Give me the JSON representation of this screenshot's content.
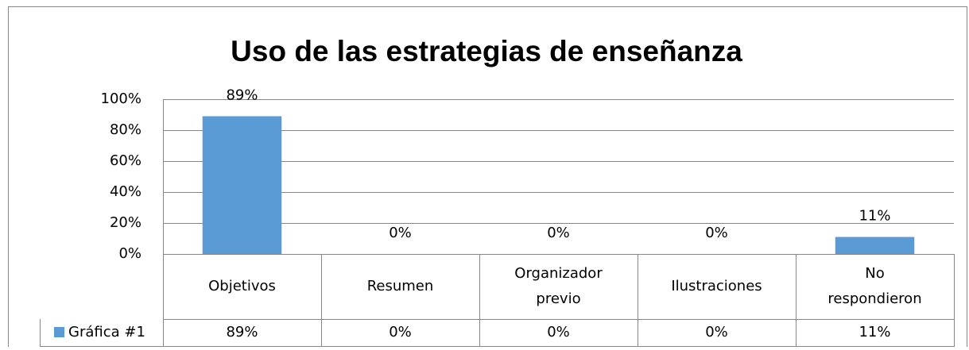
{
  "chart_data": {
    "type": "bar",
    "title": "Uso de las estrategias de enseñanza",
    "categories": [
      "Objetivos",
      "Resumen",
      "Organizador previo",
      "Ilustraciones",
      "No respondieron"
    ],
    "series": [
      {
        "name": "Gráfica #1",
        "color": "#5b9bd5",
        "values": [
          89,
          0,
          0,
          0,
          11
        ],
        "value_labels": [
          "89%",
          "0%",
          "0%",
          "0%",
          "11%"
        ]
      }
    ],
    "ylim": [
      0,
      100
    ],
    "yticks": [
      {
        "value": 0,
        "label": "0%"
      },
      {
        "value": 20,
        "label": "20%"
      },
      {
        "value": 40,
        "label": "40%"
      },
      {
        "value": 60,
        "label": "60%"
      },
      {
        "value": 80,
        "label": "80%"
      },
      {
        "value": 100,
        "label": "100%"
      }
    ],
    "grid": true
  }
}
